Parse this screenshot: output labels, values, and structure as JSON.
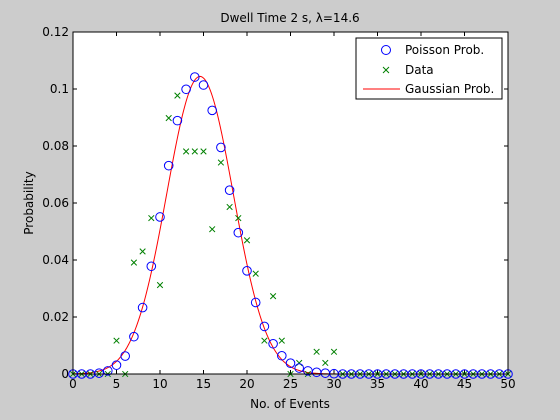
{
  "figure": {
    "background": "#cccccc",
    "axes_background": "#ffffff"
  },
  "chart_data": {
    "type": "scatter",
    "title": "Dwell Time 2 s, λ=14.6",
    "xlabel": "No. of Events",
    "ylabel": "Probability",
    "xlim": [
      0,
      50
    ],
    "ylim": [
      0,
      0.12
    ],
    "xticks": [
      0,
      5,
      10,
      15,
      20,
      25,
      30,
      35,
      40,
      45,
      50
    ],
    "yticks": [
      0,
      0.02,
      0.04,
      0.06,
      0.08,
      0.1,
      0.12
    ],
    "xtick_labels": [
      "0",
      "5",
      "10",
      "15",
      "20",
      "25",
      "30",
      "35",
      "40",
      "45",
      "50"
    ],
    "ytick_labels": [
      "0",
      "0.02",
      "0.04",
      "0.06",
      "0.08",
      "0.1",
      "0.12"
    ],
    "grid": false,
    "legend": {
      "position": "top-right"
    },
    "series": [
      {
        "name": "Poisson Prob.",
        "marker": "circle",
        "color": "#0000ff",
        "x": [
          0,
          1,
          2,
          3,
          4,
          5,
          6,
          7,
          8,
          9,
          10,
          11,
          12,
          13,
          14,
          15,
          16,
          17,
          18,
          19,
          20,
          21,
          22,
          23,
          24,
          25,
          26,
          27,
          28,
          29,
          30,
          31,
          32,
          33,
          34,
          35,
          36,
          37,
          38,
          39,
          40,
          41,
          42,
          43,
          44,
          45,
          46,
          47,
          48,
          49,
          50
        ],
        "y": [
          0.0,
          0.0,
          0.0,
          0.0003,
          0.0011,
          0.0031,
          0.0063,
          0.0131,
          0.0233,
          0.0378,
          0.0551,
          0.0731,
          0.0889,
          0.0999,
          0.1042,
          0.1014,
          0.0925,
          0.0795,
          0.0645,
          0.0496,
          0.0362,
          0.0251,
          0.0167,
          0.0106,
          0.0064,
          0.0038,
          0.0021,
          0.0011,
          0.0006,
          0.0003,
          0.0001,
          0.0,
          0.0,
          0.0,
          0.0,
          0.0,
          0.0,
          0.0,
          0.0,
          0.0,
          0.0,
          0.0,
          0.0,
          0.0,
          0.0,
          0.0,
          0.0,
          0.0,
          0.0,
          0.0,
          0.0
        ]
      },
      {
        "name": "Data",
        "marker": "x",
        "color": "#008000",
        "x": [
          0,
          1,
          2,
          3,
          4,
          5,
          6,
          7,
          8,
          9,
          10,
          11,
          12,
          13,
          14,
          15,
          16,
          17,
          18,
          19,
          20,
          21,
          22,
          23,
          24,
          25,
          26,
          27,
          28,
          29,
          30,
          31,
          32,
          33,
          34,
          35,
          36,
          37,
          38,
          39,
          40,
          41,
          42,
          43,
          44,
          45,
          46,
          47,
          48,
          49,
          50
        ],
        "y": [
          0,
          0,
          0,
          0,
          0,
          0.0117,
          0,
          0.0391,
          0.043,
          0.0547,
          0.0312,
          0.0898,
          0.0977,
          0.0781,
          0.0781,
          0.0781,
          0.0508,
          0.0742,
          0.0586,
          0.0547,
          0.0469,
          0.0352,
          0.0117,
          0.0273,
          0.0117,
          0,
          0.0039,
          0,
          0.0078,
          0.0039,
          0.0078,
          0,
          0,
          0,
          0,
          0,
          0,
          0,
          0,
          0,
          0,
          0,
          0,
          0,
          0,
          0,
          0,
          0,
          0,
          0,
          0
        ]
      },
      {
        "name": "Gaussian Prob.",
        "marker": "line",
        "color": "#ff0000",
        "mean": 14.6,
        "variance": 14.6,
        "x_range": [
          0,
          50
        ]
      }
    ]
  }
}
